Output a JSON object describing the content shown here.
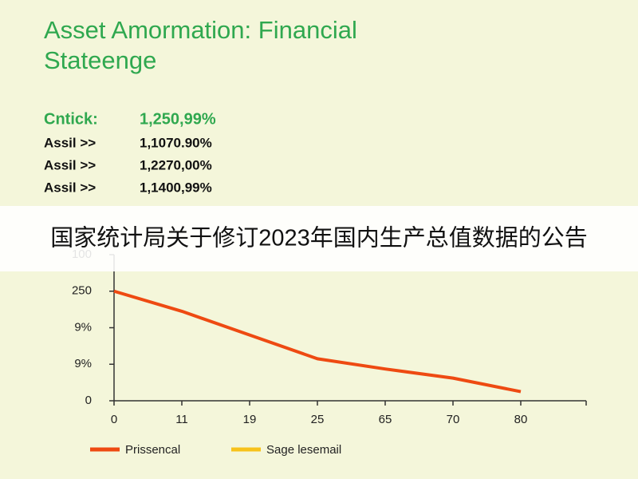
{
  "title": [
    "Asset Amormation: Financial",
    "Stateenge"
  ],
  "stats": [
    {
      "label": "Cntick:",
      "value": "1,250,99%"
    },
    {
      "label": "Assil >>",
      "value": "1,1070.90%"
    },
    {
      "label": "Assil >>",
      "value": "1,2270,00%"
    },
    {
      "label": "Assil >>",
      "value": "1,1400,99%"
    }
  ],
  "banner": "国家统计局关于修订2023年国内生产总值数据的公告",
  "chart_data": {
    "type": "line",
    "categories": [
      "0",
      "11",
      "19",
      "25",
      "65",
      "70",
      "80"
    ],
    "series": [
      {
        "name": "Prissencal",
        "color": "#ee4a12",
        "values": [
          3.0,
          2.45,
          1.8,
          1.15,
          0.87,
          0.62,
          0.25
        ]
      },
      {
        "name": "Sage lesemail",
        "color": "#f7c21b",
        "values": [
          null,
          null,
          null,
          null,
          null,
          null,
          null
        ]
      }
    ],
    "ylim": [
      0,
      4
    ],
    "yticks": [
      {
        "value": 0,
        "label": "0"
      },
      {
        "value": 1,
        "label": "9%"
      },
      {
        "value": 2,
        "label": "9%"
      },
      {
        "value": 3,
        "label": "250"
      },
      {
        "value": 4,
        "label": "100"
      }
    ],
    "grid": false,
    "legend": "bottom"
  }
}
